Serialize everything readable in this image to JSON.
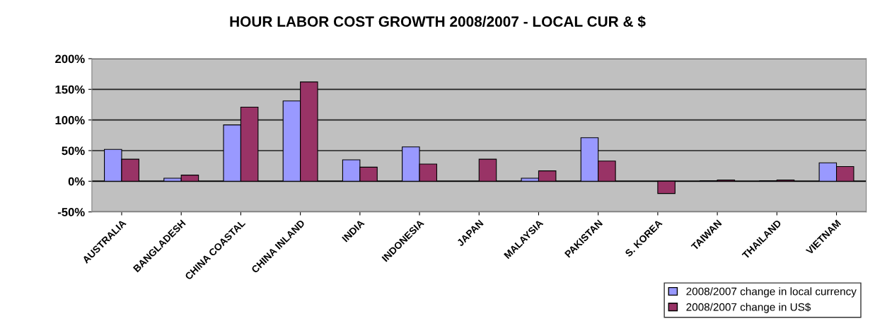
{
  "chart_data": {
    "type": "bar",
    "title": "HOUR LABOR COST GROWTH 2008/2007 - LOCAL CUR & $",
    "categories": [
      "AUSTRALIA",
      "BANGLADESH",
      "CHINA COASTAL",
      "CHINA INLAND",
      "INDIA",
      "INDONESIA",
      "JAPAN",
      "MALAYSIA",
      "PAKISTAN",
      "S. KOREA",
      "TAIWAN",
      "THAILAND",
      "VIETNAM"
    ],
    "series": [
      {
        "name": "2008/2007 change in local currency",
        "color": "#9999ff",
        "values": [
          52,
          5,
          92,
          131,
          35,
          56,
          null,
          5,
          71,
          null,
          1,
          1,
          30
        ]
      },
      {
        "name": "2008/2007 change in US$",
        "color": "#993366",
        "values": [
          36,
          10,
          121,
          162,
          23,
          28,
          36,
          17,
          33,
          -20,
          2,
          2,
          24
        ]
      }
    ],
    "ylim": [
      -50,
      200
    ],
    "yticks": [
      {
        "value": -50,
        "label": "-50%"
      },
      {
        "value": 0,
        "label": "0%"
      },
      {
        "value": 50,
        "label": "50%"
      },
      {
        "value": 100,
        "label": "100%"
      },
      {
        "value": 150,
        "label": "150%"
      },
      {
        "value": 200,
        "label": "200%"
      }
    ],
    "grid": "y",
    "legend": "bottom right"
  }
}
